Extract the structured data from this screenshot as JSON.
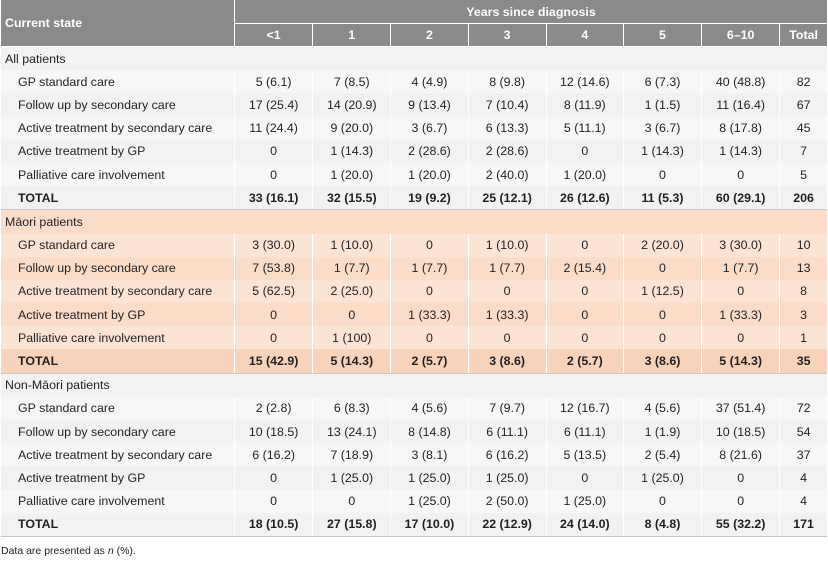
{
  "header": {
    "current_state": "Current state",
    "years_since": "Years since diagnosis",
    "columns": [
      "<1",
      "1",
      "2",
      "3",
      "4",
      "5",
      "6–10",
      "Total"
    ]
  },
  "groups": [
    {
      "title": "All patients",
      "rows": [
        {
          "label": "GP standard care",
          "cells": [
            "5 (6.1)",
            "7 (8.5)",
            "4 (4.9)",
            "8 (9.8)",
            "12 (14.6)",
            "6 (7.3)",
            "40 (48.8)",
            "82"
          ]
        },
        {
          "label": "Follow up by secondary care",
          "cells": [
            "17 (25.4)",
            "14 (20.9)",
            "9 (13.4)",
            "7 (10.4)",
            "8 (11.9)",
            "1 (1.5)",
            "11 (16.4)",
            "67"
          ]
        },
        {
          "label": "Active treatment by secondary care",
          "cells": [
            "11 (24.4)",
            "9 (20.0)",
            "3 (6.7)",
            "6 (13.3)",
            "5 (11.1)",
            "3 (6.7)",
            "8 (17.8)",
            "45"
          ]
        },
        {
          "label": "Active treatment by GP",
          "cells": [
            "0",
            "1 (14.3)",
            "2 (28.6)",
            "2 (28.6)",
            "0",
            "1 (14.3)",
            "1 (14.3)",
            "7"
          ]
        },
        {
          "label": "Palliative care involvement",
          "cells": [
            "0",
            "1 (20.0)",
            "1 (20.0)",
            "2 (40.0)",
            "1 (20.0)",
            "0",
            "0",
            "5"
          ]
        }
      ],
      "total": {
        "label": "TOTAL",
        "cells": [
          "33 (16.1)",
          "32 (15.5)",
          "19 (9.2)",
          "25 (12.1)",
          "26 (12.6)",
          "11 (5.3)",
          "60 (29.1)",
          "206"
        ]
      }
    },
    {
      "title": "Māori patients",
      "rows": [
        {
          "label": "GP standard care",
          "cells": [
            "3 (30.0)",
            "1 (10.0)",
            "0",
            "1 (10.0)",
            "0",
            "2 (20.0)",
            "3 (30.0)",
            "10"
          ]
        },
        {
          "label": "Follow up by secondary care",
          "cells": [
            "7 (53.8)",
            "1 (7.7)",
            "1 (7.7)",
            "1 (7.7)",
            "2 (15.4)",
            "0",
            "1 (7.7)",
            "13"
          ]
        },
        {
          "label": "Active treatment by secondary care",
          "cells": [
            "5 (62.5)",
            "2 (25.0)",
            "0",
            "0",
            "0",
            "1 (12.5)",
            "0",
            "8"
          ]
        },
        {
          "label": "Active treatment by GP",
          "cells": [
            "0",
            "0",
            "1 (33.3)",
            "1 (33.3)",
            "0",
            "0",
            "1 (33.3)",
            "3"
          ]
        },
        {
          "label": "Palliative care involvement",
          "cells": [
            "0",
            "1 (100)",
            "0",
            "0",
            "0",
            "0",
            "0",
            "1"
          ]
        }
      ],
      "total": {
        "label": "TOTAL",
        "cells": [
          "15 (42.9)",
          "5 (14.3)",
          "2 (5.7)",
          "3 (8.6)",
          "2 (5.7)",
          "3 (8.6)",
          "5 (14.3)",
          "35"
        ]
      }
    },
    {
      "title": "Non-Māori patients",
      "rows": [
        {
          "label": "GP standard care",
          "cells": [
            "2 (2.8)",
            "6 (8.3)",
            "4 (5.6)",
            "7 (9.7)",
            "12 (16.7)",
            "4 (5.6)",
            "37 (51.4)",
            "72"
          ]
        },
        {
          "label": "Follow up by secondary care",
          "cells": [
            "10 (18.5)",
            "13 (24.1)",
            "8 (14.8)",
            "6 (11.1)",
            "6 (11.1)",
            "1 (1.9)",
            "10 (18.5)",
            "54"
          ]
        },
        {
          "label": "Active treatment by secondary care",
          "cells": [
            "6 (16.2)",
            "7 (18.9)",
            "3 (8.1)",
            "6 (16.2)",
            "5 (13.5)",
            "2 (5.4)",
            "8 (21.6)",
            "37"
          ]
        },
        {
          "label": "Active treatment by GP",
          "cells": [
            "0",
            "1 (25.0)",
            "1 (25.0)",
            "1 (25.0)",
            "0",
            "1 (25.0)",
            "0",
            "4"
          ]
        },
        {
          "label": "Palliative care involvement",
          "cells": [
            "0",
            "0",
            "1 (25.0)",
            "2 (50.0)",
            "1 (25.0)",
            "0",
            "0",
            "4"
          ]
        }
      ],
      "total": {
        "label": "TOTAL",
        "cells": [
          "18 (10.5)",
          "27 (15.8)",
          "17 (10.0)",
          "22 (12.9)",
          "24 (14.0)",
          "8 (4.8)",
          "55 (32.2)",
          "171"
        ]
      }
    }
  ],
  "note": {
    "prefix": "Data are presented as ",
    "italic": "n",
    "suffix": " (%)."
  }
}
